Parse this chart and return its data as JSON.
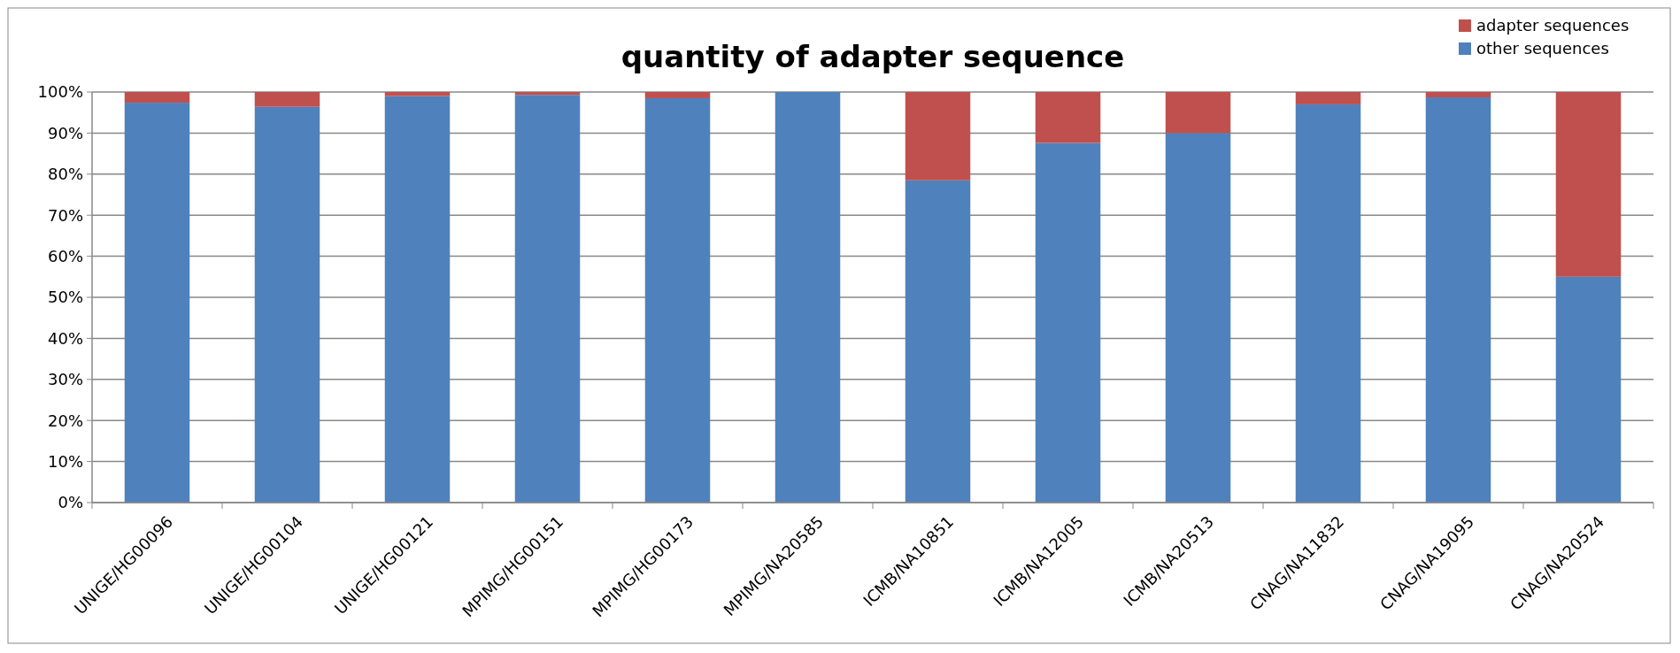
{
  "chart_data": {
    "type": "bar",
    "title": "quantity of adapter sequence",
    "stacked": true,
    "categories": [
      "UNIGE/HG00096",
      "UNIGE/HG00104",
      "UNIGE/HG00121",
      "MPIMG/HG00151",
      "MPIMG/HG00173",
      "MPIMG/NA20585",
      "ICMB/NA10851",
      "ICMB/NA12005",
      "ICMB/NA20513",
      "CNAG/NA11832",
      "CNAG/NA19095",
      "CNAG/NA20524"
    ],
    "series": [
      {
        "name": "other sequences",
        "color": "#4f81bd",
        "values": [
          97.4,
          96.4,
          99,
          99.3,
          98.5,
          100,
          78.5,
          87.6,
          90,
          97,
          98.7,
          55
        ]
      },
      {
        "name": "adapter sequences",
        "color": "#c0504d",
        "values": [
          2.6,
          3.6,
          1,
          0.7,
          1.5,
          0,
          21.5,
          12.4,
          10,
          3,
          1.3,
          45
        ]
      }
    ],
    "ylim": [
      0,
      100
    ],
    "yticks": [
      {
        "value": 0,
        "label": "0%"
      },
      {
        "value": 10,
        "label": "10%"
      },
      {
        "value": 20,
        "label": "20%"
      },
      {
        "value": 30,
        "label": "30%"
      },
      {
        "value": 40,
        "label": "40%"
      },
      {
        "value": 50,
        "label": "50%"
      },
      {
        "value": 60,
        "label": "60%"
      },
      {
        "value": 70,
        "label": "70%"
      },
      {
        "value": 80,
        "label": "80%"
      },
      {
        "value": 90,
        "label": "90%"
      },
      {
        "value": 100,
        "label": "100%"
      }
    ],
    "grid": "y",
    "legend": "top right"
  }
}
